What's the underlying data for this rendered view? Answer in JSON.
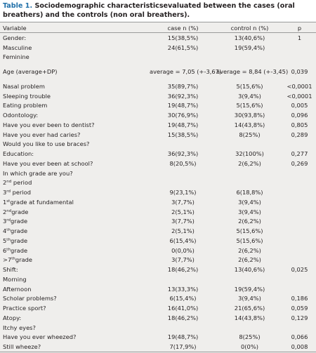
{
  "caption": {
    "label": "Table 1.",
    "text": "Sociodemographic characteristicsevaluated between the cases (oral breathers) and the controls (non oral breathers)."
  },
  "table": {
    "header": [
      "Variable",
      "case n (%)",
      "control n (%)",
      "p"
    ],
    "rows": [
      [
        "Gender:",
        "15(38,5%)",
        "13(40,6%)",
        "1"
      ],
      [
        "Masculine",
        "24(61,5%)",
        "19(59,4%)"
      ],
      [
        "Feminine"
      ],
      [
        "Age (average+DP)",
        "average = 7,05 (+-3,67)",
        "average = 8,84 (+-3,45)",
        "0,039"
      ],
      [
        "Nasal problem",
        "35(89,7%)",
        "5(15,6%)",
        "<0,0001"
      ],
      [
        "Sleeping trouble",
        "36(92,3%)",
        "3(9,4%)",
        "<0,0001"
      ],
      [
        "Eating problem",
        "19(48,7%)",
        "5(15,6%)",
        "0,005"
      ],
      [
        "Odontology:",
        "30(76,9%)",
        "30(93,8%)",
        "0,096"
      ],
      [
        "Have you ever been to dentist?",
        "19(48,7%)",
        "14(43,8%)",
        "0,805"
      ],
      [
        "Have you ever had caries?",
        "15(38,5%)",
        "8(25%)",
        "0,289"
      ],
      [
        "Would you like to use braces?"
      ],
      [
        "Education:",
        "36(92,3%)",
        "32(100%)",
        "0,277"
      ],
      [
        "Have you ever been at school?",
        "8(20,5%)",
        "2(6,2%)",
        "0,269"
      ],
      [
        "In which grade are you?"
      ],
      [
        {
          "text": "2",
          "sup": "nd",
          "rest": " period"
        }
      ],
      [
        {
          "text": "3",
          "sup": "rd",
          "rest": " period"
        },
        "9(23,1%)",
        "6(18,8%)"
      ],
      [
        {
          "text": "1",
          "sup": "st",
          "rest": "grade at fundamental"
        },
        "3(7,7%)",
        "3(9,4%)"
      ],
      [
        {
          "text": "2",
          "sup": "nd",
          "rest": "grade"
        },
        "2(5,1%)",
        "3(9,4%)"
      ],
      [
        {
          "text": "3",
          "sup": "rd",
          "rest": "grade"
        },
        "3(7,7%)",
        "2(6,2%)"
      ],
      [
        {
          "text": "4",
          "sup": "th",
          "rest": "grade"
        },
        "2(5,1%)",
        "5(15,6%)"
      ],
      [
        {
          "text": "5",
          "sup": "th",
          "rest": "grade"
        },
        "6(15,4%)",
        "5(15,6%)"
      ],
      [
        {
          "text": "6",
          "sup": "th",
          "rest": "grade"
        },
        "0(0,0%)",
        "2(6,2%)"
      ],
      [
        {
          "text": ">7",
          "sup": "th",
          "rest": "grade"
        },
        "3(7,7%)",
        "2(6,2%)"
      ],
      [
        "Shift:",
        "18(46,2%)",
        "13(40,6%)",
        "0,025"
      ],
      [
        "Morning"
      ],
      [
        "Afternoon",
        "13(33,3%)",
        "19(59,4%)"
      ],
      [
        "Scholar problems?",
        "6(15,4%)",
        "3(9,4%)",
        "0,186"
      ],
      [
        "Practice sport?",
        "16(41,0%)",
        "21(65,6%)",
        "0,059"
      ],
      [
        "Atopy:",
        "18(46,2%)",
        "14(43,8%)",
        "0,129"
      ],
      [
        "Itchy eyes?"
      ],
      [
        "Have you ever wheezed?",
        "19(48,7%)",
        "8(25%)",
        "0,066"
      ],
      [
        "Still wheeze?",
        "7(17,9%)",
        "0(0%)",
        "0,008"
      ]
    ]
  }
}
